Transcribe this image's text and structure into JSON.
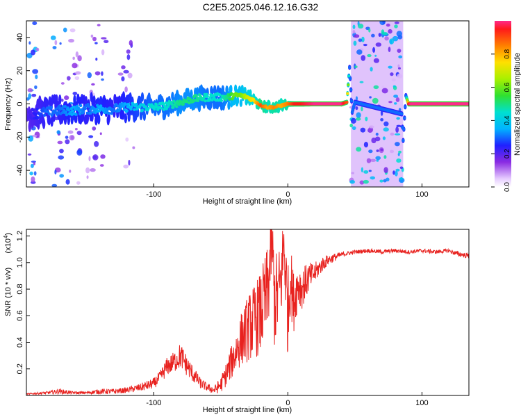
{
  "title": "C2E5.2025.046.12.16.G32",
  "chart_data": [
    {
      "type": "heatmap",
      "xlabel": "Height of straight line (km)",
      "ylabel": "Frequency (Hz)",
      "xlim": [
        -195,
        135
      ],
      "ylim": [
        -50,
        50
      ],
      "xticks": [
        -100,
        0,
        100
      ],
      "xtick_labels": [
        "-100",
        "0",
        "100"
      ],
      "yticks": [
        -40,
        -20,
        0,
        20,
        40
      ],
      "ytick_labels": [
        "-40",
        "-20",
        "0",
        "20",
        "40"
      ],
      "colorbar": {
        "label": "Normalized spectral amplitude",
        "range": [
          0,
          1
        ],
        "ticks": [
          0.0,
          0.2,
          0.4,
          0.6,
          0.8
        ],
        "tick_labels": [
          "0.0",
          "0.2",
          "0.4",
          "0.6",
          "0.8"
        ]
      },
      "ridge": {
        "x": [
          -195,
          -180,
          -170,
          -160,
          -150,
          -140,
          -130,
          -120,
          -110,
          -100,
          -90,
          -80,
          -70,
          -60,
          -50,
          -45,
          -40,
          -35,
          -30,
          -25,
          -20,
          -15,
          -10,
          -5,
          0,
          5,
          10,
          20,
          30,
          40,
          44,
          46,
          48,
          50,
          85,
          86,
          88,
          90,
          92,
          100,
          110,
          120,
          135
        ],
        "y": [
          -6,
          -5,
          -4,
          -4,
          -3,
          -3,
          -3,
          -2,
          -2,
          -2,
          -1,
          1,
          3,
          4,
          4,
          4,
          5,
          5,
          4,
          2,
          -1,
          -2,
          -2,
          -1,
          0,
          0,
          0,
          0,
          0,
          0,
          1,
          22,
          -5,
          1,
          -6,
          -22,
          5,
          0,
          0,
          0,
          0,
          0,
          0
        ],
        "amplitude": [
          0.2,
          0.3,
          0.3,
          0.35,
          0.3,
          0.35,
          0.3,
          0.35,
          0.4,
          0.45,
          0.45,
          0.5,
          0.5,
          0.45,
          0.45,
          0.5,
          0.6,
          0.6,
          0.7,
          0.75,
          0.9,
          0.8,
          0.85,
          0.8,
          0.85,
          0.95,
          0.95,
          1.0,
          1.0,
          1.0,
          0.9,
          0.3,
          0.3,
          0.3,
          0.3,
          0.3,
          0.3,
          0.95,
          1.0,
          1.0,
          1.0,
          1.0,
          1.0
        ]
      },
      "noise_bands": [
        {
          "x": [
            -195,
            -185
          ],
          "level": 0.35
        },
        {
          "x": [
            -175,
            -155
          ],
          "level": 0.3
        },
        {
          "x": [
            -150,
            -135
          ],
          "level": 0.25
        },
        {
          "x": [
            -125,
            -115
          ],
          "level": 0.2
        },
        {
          "x": [
            47,
            86
          ],
          "level": 0.45
        }
      ]
    },
    {
      "type": "line",
      "xlabel": "Height of straight line (km)",
      "ylabel": "SNR (10 * v/v)",
      "scale_label": "(x10",
      "scale_exponent": "4",
      "scale_suffix": ")",
      "xlim": [
        -195,
        135
      ],
      "ylim": [
        0,
        1.25
      ],
      "xticks": [
        -100,
        0,
        100
      ],
      "xtick_labels": [
        "-100",
        "0",
        "100"
      ],
      "yticks": [
        0.2,
        0.4,
        0.6,
        0.8,
        1.0,
        1.2
      ],
      "ytick_labels": [
        "0.2",
        "0.4",
        "0.6",
        "0.8",
        "1.0",
        "1.2"
      ],
      "series": [
        {
          "color": "#e8221f",
          "x": [
            -195,
            -180,
            -170,
            -160,
            -150,
            -140,
            -130,
            -120,
            -110,
            -100,
            -95,
            -90,
            -85,
            -80,
            -75,
            -70,
            -65,
            -60,
            -55,
            -50,
            -45,
            -40,
            -35,
            -30,
            -25,
            -20,
            -15,
            -12,
            -10,
            -8,
            -5,
            -3,
            0,
            2,
            4,
            6,
            8,
            10,
            15,
            20,
            25,
            30,
            35,
            40,
            45,
            50,
            60,
            70,
            80,
            90,
            100,
            110,
            120,
            125,
            130,
            135
          ],
          "y": [
            0.01,
            0.02,
            0.03,
            0.02,
            0.02,
            0.03,
            0.03,
            0.04,
            0.06,
            0.09,
            0.14,
            0.22,
            0.25,
            0.3,
            0.22,
            0.15,
            0.09,
            0.06,
            0.04,
            0.08,
            0.18,
            0.3,
            0.42,
            0.5,
            0.56,
            0.62,
            0.78,
            1.2,
            0.7,
            0.75,
            0.85,
            1.15,
            0.62,
            0.9,
            0.7,
            0.78,
            0.85,
            0.8,
            0.88,
            0.92,
            0.98,
            1.02,
            1.04,
            1.06,
            1.07,
            1.08,
            1.09,
            1.08,
            1.09,
            1.08,
            1.09,
            1.08,
            1.09,
            1.07,
            1.06,
            1.05
          ],
          "noise": [
            0.005,
            0.01,
            0.02,
            0.01,
            0.01,
            0.02,
            0.02,
            0.02,
            0.03,
            0.04,
            0.05,
            0.07,
            0.08,
            0.1,
            0.08,
            0.06,
            0.04,
            0.03,
            0.03,
            0.06,
            0.1,
            0.15,
            0.2,
            0.25,
            0.28,
            0.32,
            0.36,
            0.3,
            0.35,
            0.35,
            0.3,
            0.3,
            0.35,
            0.25,
            0.25,
            0.2,
            0.18,
            0.16,
            0.12,
            0.08,
            0.06,
            0.04,
            0.03,
            0.02,
            0.015,
            0.015,
            0.015,
            0.015,
            0.015,
            0.015,
            0.015,
            0.015,
            0.015,
            0.02,
            0.02,
            0.02
          ]
        }
      ]
    }
  ]
}
